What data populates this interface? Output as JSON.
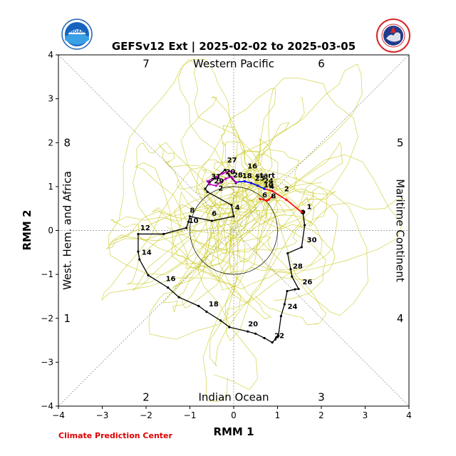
{
  "page": {
    "credit": "Climate Prediction Center",
    "colors": {
      "ensemble": "#c8c81e",
      "observed": "#000000",
      "forecast_early": "#ff0000",
      "forecast_mid": "#0000ff",
      "forecast_late": "#c000c0",
      "credit": "#e00000"
    }
  },
  "logos": {
    "noaa": "NOAA",
    "nws": "NATIONAL WEATHER SERVICE"
  },
  "chart_data": {
    "type": "line",
    "title": "GEFSv12 Ext | 2025-02-02 to 2025-03-05",
    "xlabel": "RMM 1",
    "ylabel": "RMM 2",
    "xlim": [
      -4,
      4
    ],
    "ylim": [
      -4,
      4
    ],
    "xticks": [
      "−4",
      "−3",
      "−2",
      "−1",
      "0",
      "1",
      "2",
      "3",
      "4"
    ],
    "yticks": [
      "−4",
      "−3",
      "−2",
      "−1",
      "0",
      "1",
      "2",
      "3",
      "4"
    ],
    "phase_numbers": [
      "1",
      "2",
      "3",
      "4",
      "5",
      "6",
      "7",
      "8"
    ],
    "region_labels": {
      "top": "Western Pacific",
      "bottom": "Indian Ocean",
      "left": "West. Hem. and Africa",
      "right": "Maritime Continent"
    },
    "unit_circle_radius": 1,
    "observed_track": {
      "points": [
        [
          1.58,
          0.42
        ],
        [
          1.62,
          0.12
        ],
        [
          1.55,
          -0.38
        ],
        [
          1.23,
          -0.52
        ],
        [
          1.3,
          -0.88
        ],
        [
          1.33,
          -1.05
        ],
        [
          1.48,
          -1.33
        ],
        [
          1.4,
          -1.34
        ],
        [
          1.22,
          -1.38
        ],
        [
          1.16,
          -1.68
        ],
        [
          1.08,
          -1.95
        ],
        [
          1.02,
          -2.4
        ],
        [
          0.95,
          -2.48
        ],
        [
          0.88,
          -2.55
        ],
        [
          0.7,
          -2.45
        ],
        [
          0.5,
          -2.35
        ],
        [
          0.32,
          -2.3
        ],
        [
          -0.1,
          -2.2
        ],
        [
          -0.3,
          -2.05
        ],
        [
          -0.62,
          -1.85
        ],
        [
          -0.8,
          -1.72
        ],
        [
          -1.25,
          -1.52
        ],
        [
          -1.5,
          -1.3
        ],
        [
          -1.95,
          -1.02
        ],
        [
          -2.15,
          -0.66
        ],
        [
          -2.18,
          -0.48
        ],
        [
          -2.18,
          -0.08
        ],
        [
          -1.6,
          -0.08
        ],
        [
          -1.08,
          0.06
        ],
        [
          -1.03,
          0.2
        ],
        [
          -1.0,
          0.32
        ],
        [
          -0.5,
          0.22
        ],
        [
          0.0,
          0.32
        ],
        [
          -0.05,
          0.58
        ],
        [
          -0.6,
          0.88
        ],
        [
          -0.65,
          0.95
        ],
        [
          -0.55,
          1.1
        ],
        [
          -0.38,
          1.22
        ],
        [
          -0.2,
          1.38
        ],
        [
          -0.1,
          1.25
        ],
        [
          0.05,
          1.08
        ]
      ],
      "labels": [
        {
          "text": "1",
          "at": [
            1.62,
            0.44
          ]
        },
        {
          "text": "30",
          "at": [
            1.62,
            -0.32
          ]
        },
        {
          "text": "28",
          "at": [
            1.3,
            -0.92
          ]
        },
        {
          "text": "26",
          "at": [
            1.52,
            -1.27
          ]
        },
        {
          "text": "24",
          "at": [
            1.18,
            -1.83
          ]
        },
        {
          "text": "22",
          "at": [
            0.88,
            -2.5
          ]
        },
        {
          "text": "20",
          "at": [
            0.28,
            -2.23
          ]
        },
        {
          "text": "18",
          "at": [
            -0.62,
            -1.78
          ]
        },
        {
          "text": "16",
          "at": [
            -1.6,
            -1.2
          ]
        },
        {
          "text": "14",
          "at": [
            -2.15,
            -0.6
          ]
        },
        {
          "text": "12",
          "at": [
            -2.18,
            -0.04
          ]
        },
        {
          "text": "10",
          "at": [
            -1.08,
            0.12
          ]
        },
        {
          "text": "8",
          "at": [
            -1.05,
            0.36
          ]
        },
        {
          "text": "6",
          "at": [
            -0.55,
            0.28
          ]
        },
        {
          "text": "4",
          "at": [
            -0.02,
            0.42
          ]
        },
        {
          "text": "2",
          "at": [
            -0.4,
            0.86
          ]
        },
        {
          "text": "27",
          "at": [
            -0.2,
            1.5
          ]
        }
      ]
    },
    "forecast_track": {
      "start_label": "start",
      "start_at": [
        0.5,
        1.2
      ],
      "segments": [
        {
          "color": "red",
          "points": [
            [
              1.55,
              0.42
            ],
            [
              1.2,
              0.7
            ],
            [
              0.88,
              0.9
            ],
            [
              0.7,
              0.95
            ]
          ],
          "labels": [
            {
              "text": "2",
              "at": [
                1.12,
                0.86
              ]
            }
          ]
        },
        {
          "color": "blue",
          "points": [
            [
              0.7,
              0.95
            ],
            [
              0.55,
              1.02
            ],
            [
              0.4,
              1.08
            ],
            [
              0.25,
              1.12
            ],
            [
              0.05,
              1.1
            ]
          ],
          "labels": [
            {
              "text": "4",
              "at": [
                0.78,
                0.92
              ]
            },
            {
              "text": "10",
              "at": [
                0.65,
                0.95
              ]
            }
          ]
        },
        {
          "color": "magenta",
          "points": [
            [
              0.05,
              1.1
            ],
            [
              -0.05,
              1.22
            ],
            [
              -0.18,
              1.18
            ],
            [
              -0.3,
              1.1
            ],
            [
              -0.4,
              1.02
            ],
            [
              -0.55,
              1.05
            ],
            [
              -0.6,
              1.12
            ],
            [
              -0.4,
              1.22
            ],
            [
              -0.25,
              1.3
            ],
            [
              -0.1,
              1.35
            ],
            [
              0.0,
              1.33
            ]
          ],
          "labels": [
            {
              "text": "16",
              "at": [
                0.28,
                1.38
              ]
            },
            {
              "text": "25",
              "at": [
                0.45,
                1.1
              ]
            },
            {
              "text": "24",
              "at": [
                0.65,
                1.05
              ]
            },
            {
              "text": "18",
              "at": [
                0.16,
                1.16
              ]
            },
            {
              "text": "28",
              "at": [
                -0.05,
                1.18
              ]
            },
            {
              "text": "31",
              "at": [
                -0.55,
                1.14
              ]
            },
            {
              "text": "29",
              "at": [
                -0.48,
                1.04
              ]
            },
            {
              "text": "20",
              "at": [
                -0.22,
                1.25
              ]
            }
          ]
        },
        {
          "color": "red",
          "points": [
            [
              0.88,
              0.78
            ],
            [
              0.8,
              0.7
            ],
            [
              0.75,
              0.68
            ],
            [
              0.6,
              0.72
            ]
          ],
          "labels": [
            {
              "text": "6",
              "at": [
                0.62,
                0.72
              ]
            },
            {
              "text": "8",
              "at": [
                0.82,
                0.7
              ]
            }
          ]
        }
      ]
    },
    "grid": true
  }
}
